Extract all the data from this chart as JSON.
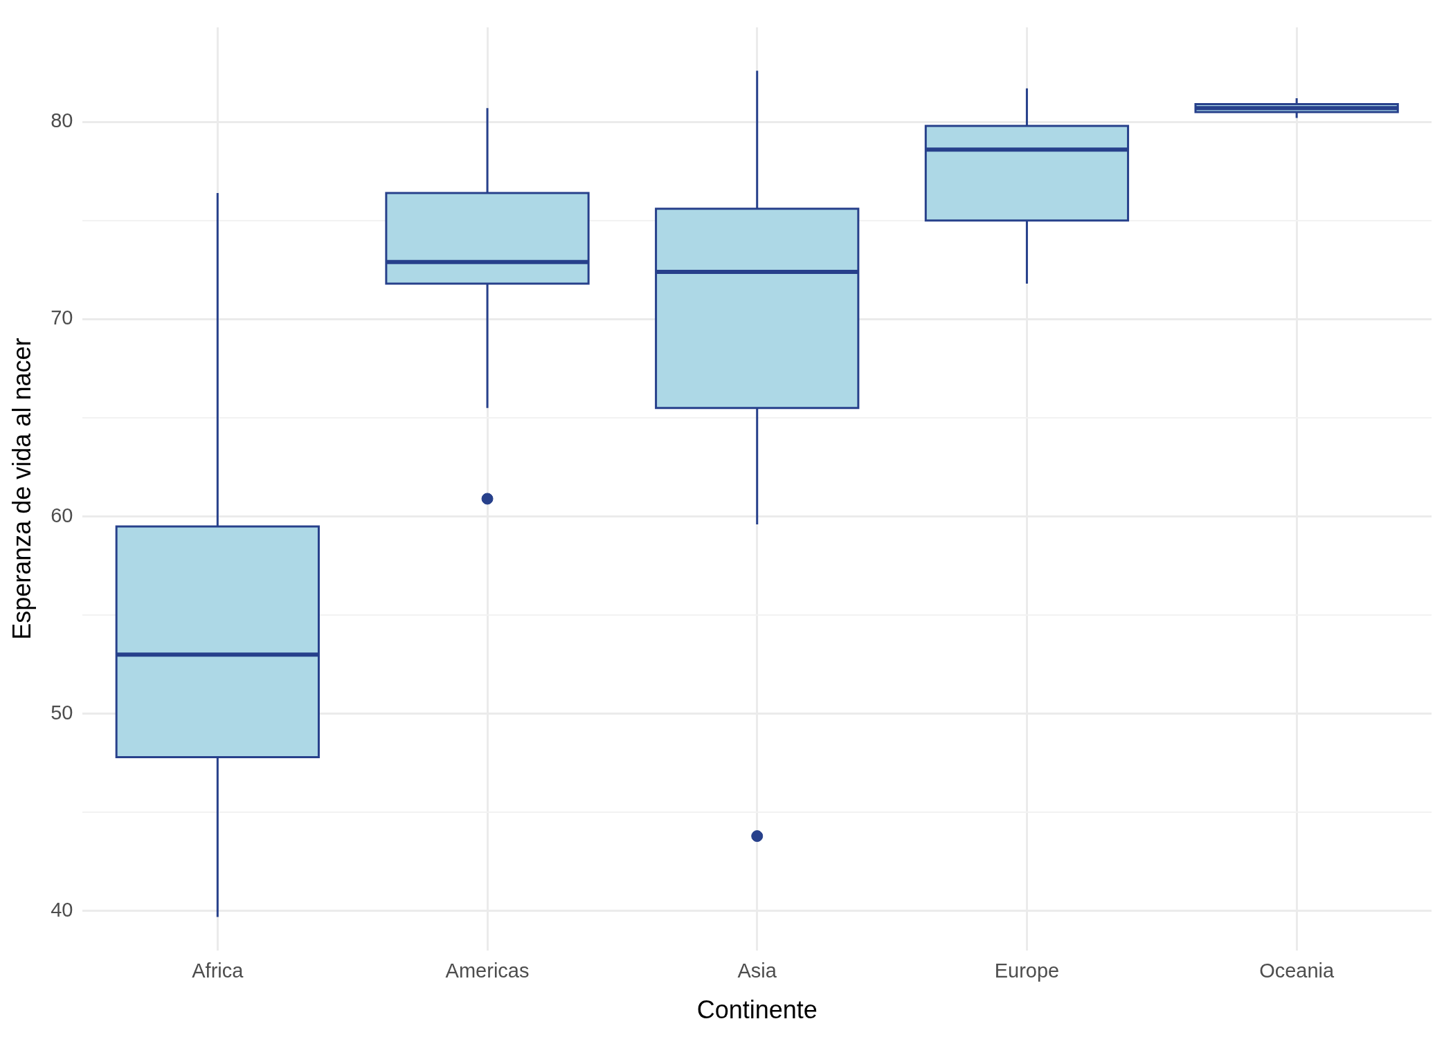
{
  "chart_data": {
    "type": "box",
    "xlabel": "Continente",
    "ylabel": "Esperanza de vida al nacer",
    "categories": [
      "Africa",
      "Americas",
      "Asia",
      "Europe",
      "Oceania"
    ],
    "series": [
      {
        "color": "#27408b",
        "colors": [
          "#add8e6",
          "#add8e6",
          "#add8e6",
          "#add8e6",
          "#add8e6"
        ],
        "boxes": [
          {
            "low": 39.7,
            "q1": 47.8,
            "median": 53.0,
            "q3": 59.5,
            "high": 76.4
          },
          {
            "low": 65.5,
            "q1": 71.8,
            "median": 72.9,
            "q3": 76.4,
            "high": 80.7,
            "outliers": [
              60.9
            ]
          },
          {
            "low": 59.6,
            "q1": 65.5,
            "median": 72.4,
            "q3": 75.6,
            "high": 82.6,
            "outliers": [
              43.8
            ]
          },
          {
            "low": 71.8,
            "q1": 75.0,
            "median": 78.6,
            "q3": 79.8,
            "high": 81.7
          },
          {
            "low": 80.2,
            "q1": 80.5,
            "median": 80.7,
            "q3": 80.9,
            "high": 81.2
          }
        ]
      }
    ],
    "ylim": [
      38,
      84.8
    ],
    "yticks": [
      40,
      {
        "value": 45,
        "label": null
      },
      50,
      {
        "value": 55,
        "label": null
      },
      60,
      {
        "value": 65,
        "label": null
      },
      70,
      {
        "value": 75,
        "label": null
      },
      80
    ],
    "grid": true,
    "legend": false
  }
}
